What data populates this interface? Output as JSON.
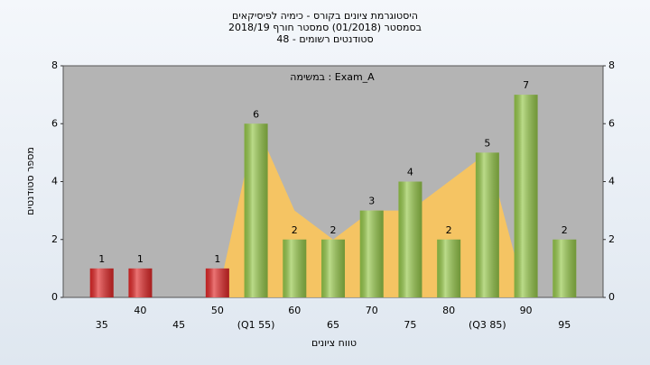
{
  "chart_data": {
    "type": "bar",
    "title": [
      "היסטוגרמת ציונים בקורס - כימיה לפיסיקאים",
      "בסמסטר  (01/2018)  סמסטר חורף 2018/19",
      "סטודנטים רשומים - 48"
    ],
    "annotation": "במשימה : Exam_A",
    "x_label": "טווח ציונים",
    "y_label": "מספר סטודנטים",
    "categories": [
      "35",
      "40",
      "45",
      "50",
      "(Q1 55)",
      "60",
      "65",
      "70",
      "75",
      "80",
      "(Q3 85)",
      "90",
      "95"
    ],
    "values": [
      1,
      1,
      0,
      1,
      6,
      2,
      2,
      3,
      4,
      2,
      5,
      7,
      2
    ],
    "colors": [
      "#e02828",
      "#e02828",
      "#e02828",
      "#e02828",
      "#96c84a",
      "#96c84a",
      "#96c84a",
      "#96c84a",
      "#96c84a",
      "#96c84a",
      "#96c84a",
      "#96c84a",
      "#96c84a"
    ],
    "area": {
      "color": "#fcc55a",
      "values": [
        null,
        null,
        null,
        0,
        6,
        3,
        2,
        3,
        3,
        4,
        5,
        0,
        null
      ]
    },
    "ylim": [
      0,
      8
    ],
    "yticks": [
      0,
      2,
      4,
      6,
      8
    ]
  }
}
